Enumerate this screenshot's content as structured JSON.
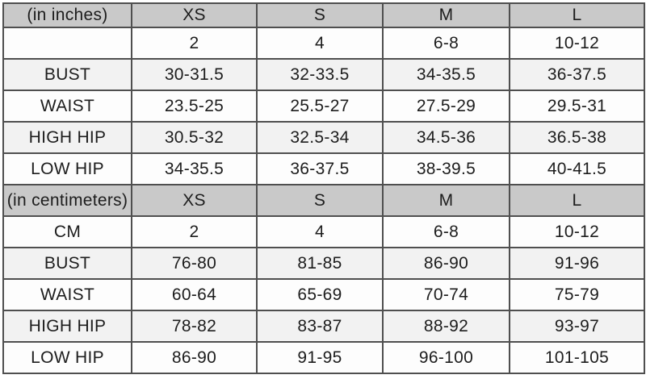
{
  "colors": {
    "header_bg": "#c9c9c9",
    "alt_row_bg": "#f2f2f2",
    "plain_row_bg": "#fdfdfd",
    "border": "#4f4f4f",
    "text": "#1d1d1d"
  },
  "size_chart": {
    "sections": [
      {
        "unit_label": "(in inches)",
        "size_headers": [
          "XS",
          "S",
          "M",
          "L"
        ],
        "rows": [
          {
            "label": "",
            "values": [
              "2",
              "4",
              "6-8",
              "10-12"
            ]
          },
          {
            "label": "BUST",
            "values": [
              "30-31.5",
              "32-33.5",
              "34-35.5",
              "36-37.5"
            ]
          },
          {
            "label": "WAIST",
            "values": [
              "23.5-25",
              "25.5-27",
              "27.5-29",
              "29.5-31"
            ]
          },
          {
            "label": "HIGH HIP",
            "values": [
              "30.5-32",
              "32.5-34",
              "34.5-36",
              "36.5-38"
            ]
          },
          {
            "label": "LOW HIP",
            "values": [
              "34-35.5",
              "36-37.5",
              "38-39.5",
              "40-41.5"
            ]
          }
        ]
      },
      {
        "unit_label": "(in centimeters)",
        "size_headers": [
          "XS",
          "S",
          "M",
          "L"
        ],
        "rows": [
          {
            "label": "CM",
            "values": [
              "2",
              "4",
              "6-8",
              "10-12"
            ]
          },
          {
            "label": "BUST",
            "values": [
              "76-80",
              "81-85",
              "86-90",
              "91-96"
            ]
          },
          {
            "label": "WAIST",
            "values": [
              "60-64",
              "65-69",
              "70-74",
              "75-79"
            ]
          },
          {
            "label": "HIGH HIP",
            "values": [
              "78-82",
              "83-87",
              "88-92",
              "93-97"
            ]
          },
          {
            "label": "LOW HIP",
            "values": [
              "86-90",
              "91-95",
              "96-100",
              "101-105"
            ]
          }
        ]
      }
    ]
  }
}
